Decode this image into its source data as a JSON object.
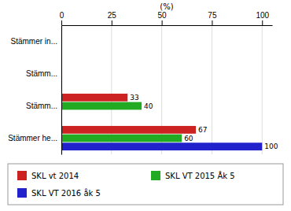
{
  "chart_data": {
    "type": "bar",
    "orientation": "horizontal",
    "categories": [
      "Stämmer he...",
      "Stämm...",
      "Stämm...",
      "Stämmer in..."
    ],
    "series": [
      {
        "name": "SKL vt 2014",
        "color": "#cc2222",
        "values": [
          67,
          33,
          0,
          0
        ]
      },
      {
        "name": "SKL VT 2015 Åk 5",
        "color": "#22aa22",
        "values": [
          60,
          40,
          0,
          0
        ]
      },
      {
        "name": "SKL VT 2016 åk 5",
        "color": "#2222cc",
        "values": [
          100,
          0,
          0,
          0
        ]
      }
    ],
    "xlabel": "(%)",
    "xlim": [
      0,
      105
    ],
    "xticks": [
      0,
      25,
      50,
      75,
      100
    ],
    "grid": true,
    "data_labels": true,
    "legend": "bottom"
  }
}
